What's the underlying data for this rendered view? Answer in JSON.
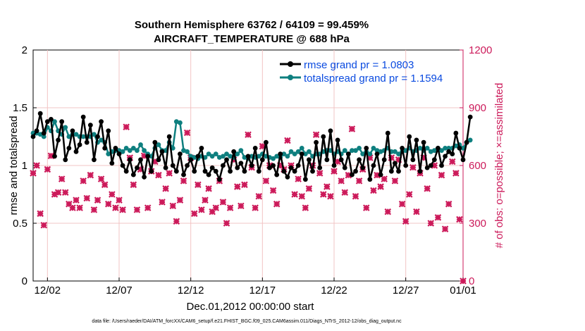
{
  "chart_data": {
    "type": "line",
    "title": "Southern Hemisphere 63762 / 64109 = 99.459%",
    "subtitle": "AIRCRAFT_TEMPERATURE @ 688 hPa",
    "xlabel": "Dec.01,2012 00:00:00 start",
    "ylabel": "rmse and totalspread",
    "y2label": "# of obs: o=possible; ×=assimilated",
    "footnote": "data file: /Users/raeder/DAI/ATM_forcXX/CAM6_setup/f.e21.FHIST_BGC.f09_025.CAM6assim.011/Diags_NTrS_2012-12/obs_diag_output.nc",
    "xlim": [
      0,
      30
    ],
    "ylim": [
      0,
      2
    ],
    "y2lim": [
      0,
      1200
    ],
    "x_ticks": [
      {
        "x": 1,
        "label": "12/02"
      },
      {
        "x": 6,
        "label": "12/07"
      },
      {
        "x": 11,
        "label": "12/12"
      },
      {
        "x": 16,
        "label": "12/17"
      },
      {
        "x": 21,
        "label": "12/22"
      },
      {
        "x": 26,
        "label": "12/27"
      },
      {
        "x": 30,
        "label": "01/01"
      }
    ],
    "y_ticks": [
      {
        "y": 0,
        "label": "0"
      },
      {
        "y": 0.5,
        "label": "0.5"
      },
      {
        "y": 1,
        "label": "1"
      },
      {
        "y": 1.5,
        "label": "1.5"
      },
      {
        "y": 2,
        "label": "2"
      }
    ],
    "y2_ticks": [
      {
        "y": 0,
        "label": "0"
      },
      {
        "y": 300,
        "label": "300"
      },
      {
        "y": 600,
        "label": "600"
      },
      {
        "y": 900,
        "label": "900"
      },
      {
        "y": 1200,
        "label": "1200"
      }
    ],
    "x_step": 0.25,
    "series": [
      {
        "name": "rmse",
        "legend": "rmse grand pr = 1.0803",
        "color": "#000000",
        "axis": "left",
        "values": [
          1.25,
          1.3,
          1.45,
          1.28,
          1.38,
          1.4,
          1.08,
          1.22,
          1.38,
          1.05,
          1.15,
          1.3,
          1.12,
          1.18,
          1.42,
          1.2,
          1.35,
          1.05,
          1.25,
          1.38,
          1.15,
          1.3,
          1.02,
          1.15,
          1.1,
          1.0,
          0.95,
          1.05,
          0.92,
          0.98,
          1.05,
          0.9,
          1.08,
          0.95,
          1.2,
          1.05,
          1.12,
          0.98,
          1.25,
          1.0,
          0.95,
          1.1,
          0.92,
          1.0,
          1.05,
          0.95,
          1.08,
          1.15,
          0.95,
          0.92,
          0.98,
          0.95,
          0.88,
          1.0,
          1.05,
          0.95,
          1.12,
          0.98,
          1.02,
          0.95,
          1.08,
          1.0,
          1.15,
          0.95,
          1.05,
          1.2,
          0.98,
          1.0,
          0.92,
          1.1,
          0.95,
          0.9,
          0.98,
          0.95,
          1.0,
          1.1,
          0.88,
          1.05,
          0.95,
          1.2,
          0.98,
          1.25,
          1.05,
          1.3,
          1.0,
          1.22,
          1.05,
          0.98,
          1.1,
          0.92,
          0.95,
          1.05,
          0.98,
          1.15,
          0.88,
          1.0,
          1.1,
          0.92,
          1.05,
          1.28,
          0.95,
          1.02,
          0.95,
          1.15,
          1.0,
          1.25,
          1.05,
          1.22,
          0.95,
          1.2,
          0.98,
          1.0,
          1.05,
          1.15,
          1.0,
          1.08,
          1.12,
          1.1,
          1.28,
          1.15,
          1.05,
          1.2,
          1.42
        ],
        "markers": [
          {
            "x": 0,
            "y": 1.25
          },
          {
            "x": 0.25,
            "y": 1.3
          },
          {
            "x": 0.5,
            "y": 1.45
          },
          {
            "x": 0.75,
            "y": 1.28
          },
          {
            "x": 1,
            "y": 1.38
          },
          {
            "x": 1.25,
            "y": 1.4
          },
          {
            "x": 1.5,
            "y": 1.08
          },
          {
            "x": 1.75,
            "y": 1.22
          }
        ]
      },
      {
        "name": "totalspread",
        "legend": "totalspread grand pr = 1.1594",
        "color": "#0e7f7f",
        "axis": "left",
        "values": [
          1.28,
          1.28,
          1.27,
          1.25,
          1.33,
          1.3,
          1.38,
          1.3,
          1.27,
          1.33,
          1.25,
          1.27,
          1.27,
          1.25,
          1.25,
          1.25,
          1.25,
          1.27,
          1.2,
          1.22,
          1.2,
          1.1,
          1.12,
          1.13,
          1.13,
          1.12,
          1.15,
          1.13,
          1.15,
          1.13,
          1.18,
          1.13,
          1.1,
          1.08,
          1.15,
          1.18,
          1.13,
          1.13,
          1.2,
          1.15,
          1.38,
          1.37,
          1.13,
          1.12,
          1.08,
          1.07,
          1.06,
          1.08,
          1.07,
          1.1,
          1.08,
          1.1,
          1.07,
          1.08,
          1.1,
          1.08,
          1.07,
          1.1,
          1.13,
          1.07,
          1.06,
          1.08,
          1.07,
          1.08,
          1.1,
          1.08,
          1.07,
          1.06,
          1.08,
          1.07,
          1.1,
          1.08,
          1.12,
          1.1,
          1.12,
          1.15,
          1.1,
          1.12,
          1.08,
          1.1,
          1.1,
          1.12,
          1.13,
          1.13,
          1.1,
          1.12,
          1.1,
          1.13,
          1.1,
          1.13,
          1.13,
          1.15,
          1.1,
          1.12,
          1.1,
          1.15,
          1.13,
          1.12,
          1.13,
          1.15,
          1.12,
          1.12,
          1.1,
          1.12,
          1.13,
          1.15,
          1.12,
          1.13,
          1.15,
          1.13,
          1.15,
          1.12,
          1.13,
          1.15,
          1.13,
          1.15,
          1.15,
          1.15,
          1.17,
          1.18,
          1.15,
          1.2,
          1.22
        ],
        "markers": []
      }
    ],
    "obs_assimilated": {
      "color": "#cc1a5a",
      "axis": "right",
      "values": [
        560,
        600,
        350,
        290,
        580,
        650,
        450,
        460,
        530,
        460,
        400,
        380,
        420,
        380,
        520,
        430,
        550,
        370,
        420,
        530,
        500,
        400,
        450,
        380,
        420,
        370,
        800,
        640,
        500,
        370,
        580,
        650,
        380,
        570,
        620,
        550,
        410,
        480,
        560,
        390,
        310,
        420,
        520,
        770,
        640,
        350,
        500,
        370,
        420,
        480,
        360,
        380,
        520,
        410,
        300,
        380,
        630,
        490,
        390,
        500,
        760,
        590,
        380,
        440,
        700,
        520,
        600,
        470,
        400,
        600,
        580,
        730,
        600,
        450,
        530,
        440,
        380,
        480,
        600,
        760,
        560,
        450,
        490,
        440,
        570,
        620,
        520,
        460,
        550,
        790,
        440,
        520,
        580,
        380,
        640,
        470,
        550,
        490,
        530,
        360,
        640,
        520,
        630,
        400,
        310,
        450,
        590,
        360,
        560,
        640,
        480,
        300,
        600,
        330,
        550,
        270,
        400,
        620,
        560,
        320,
        0
      ]
    },
    "obs_possible_label": "o",
    "assimilated_label": "×"
  }
}
